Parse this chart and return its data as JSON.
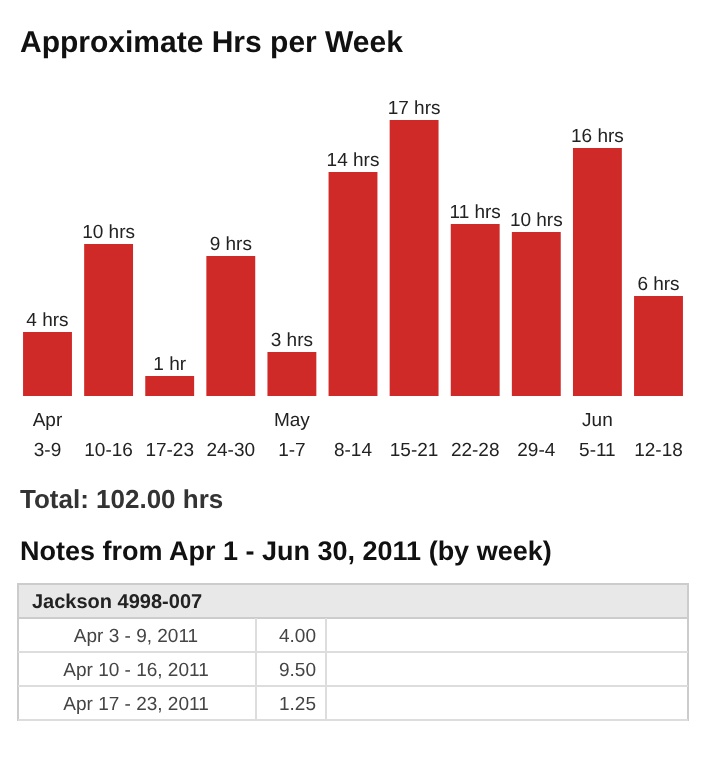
{
  "chart_data": {
    "type": "bar",
    "title": "Approximate Hrs per Week",
    "categories": [
      "Apr\n3-9",
      "10-16",
      "17-23",
      "24-30",
      "May\n1-7",
      "8-14",
      "15-21",
      "22-28",
      "29-4",
      "Jun\n5-11",
      "12-18"
    ],
    "values": [
      4,
      9.5,
      1.25,
      8.75,
      2.75,
      14,
      17.25,
      10.75,
      10.25,
      15.5,
      6.25
    ],
    "value_labels": [
      "4 hrs",
      "10 hrs",
      "1 hr",
      "9 hrs",
      "3 hrs",
      "14 hrs",
      "17 hrs",
      "11 hrs",
      "10 hrs",
      "16 hrs",
      "6 hrs"
    ],
    "color": "#cf2a27",
    "annotations": [
      "Total: 102.00 hrs",
      "Notes from Apr 1 - Jun 30, 2011 (by week)",
      "Jackson 4998-007",
      "Apr 3 - 9, 2011",
      "4.00",
      "Apr 10 - 16, 2011",
      "9.50",
      "Apr 17 - 23, 2011",
      "1.25"
    ]
  }
}
